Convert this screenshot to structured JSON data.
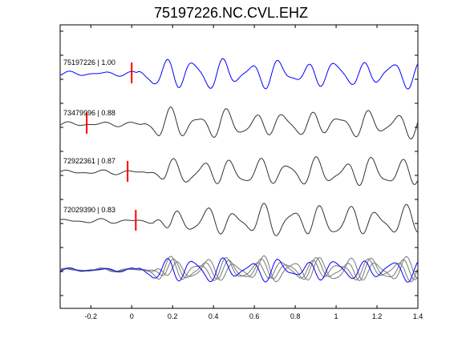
{
  "title": "75197226.NC.CVL.EHZ",
  "colors": {
    "reference": "#0000ff",
    "trace": "#333333",
    "overlay": "#777777",
    "pick": "#ff0000",
    "axis": "#000000"
  },
  "chart_data": {
    "type": "line",
    "title": "75197226.NC.CVL.EHZ",
    "xlabel": "",
    "ylabel": "",
    "xlim": [
      -0.35,
      1.4
    ],
    "xticks": [
      -0.2,
      0,
      0.2,
      0.4,
      0.6,
      0.8,
      1,
      1.2,
      1.4
    ],
    "xtick_labels": [
      "-0.2",
      "0",
      "0.2",
      "0.4",
      "0.6",
      "0.8",
      "1",
      "1.2",
      "1.4"
    ],
    "grid": false,
    "series": [
      {
        "name": "75197226 | 1.00",
        "event_id": "75197226",
        "correlation": "1.00",
        "pick_time": 0.0,
        "color": "#0000ff",
        "reference": true
      },
      {
        "name": "73479996 | 0.88",
        "event_id": "73479996",
        "correlation": "0.88",
        "pick_time": -0.22,
        "color": "#333333"
      },
      {
        "name": "72922361 | 0.87",
        "event_id": "72922361",
        "correlation": "0.87",
        "pick_time": -0.02,
        "color": "#333333"
      },
      {
        "name": "72029390 | 0.83",
        "event_id": "72029390",
        "correlation": "0.83",
        "pick_time": 0.02,
        "color": "#333333"
      }
    ],
    "overlay": {
      "description_panel": "stack",
      "colors": [
        "#0000ff",
        "#777777"
      ]
    }
  }
}
